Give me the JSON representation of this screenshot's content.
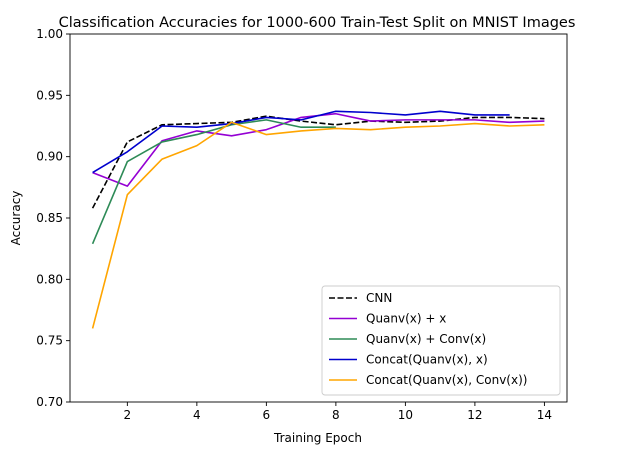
{
  "chart_data": {
    "type": "line",
    "title": "Classification Accuracies for 1000-600 Train-Test Split on MNIST Images",
    "xlabel": "Training Epoch",
    "ylabel": "Accuracy",
    "xlim": [
      0.35,
      14.65
    ],
    "ylim": [
      0.7,
      1.0
    ],
    "xticks": [
      2,
      4,
      6,
      8,
      10,
      12,
      14
    ],
    "xtick_labels": [
      "2",
      "4",
      "6",
      "8",
      "10",
      "12",
      "14"
    ],
    "yticks": [
      0.7,
      0.75,
      0.8,
      0.85,
      0.9,
      0.95,
      1.0
    ],
    "ytick_labels": [
      "0.70",
      "0.75",
      "0.80",
      "0.85",
      "0.90",
      "0.95",
      "1.00"
    ],
    "grid": false,
    "legend_position": "lower-right",
    "series": [
      {
        "name": "CNN",
        "color": "#000000",
        "dashed": true,
        "x": [
          1,
          2,
          3,
          4,
          5,
          6,
          7,
          8,
          9,
          10,
          11,
          12,
          13,
          14
        ],
        "y": [
          0.858,
          0.912,
          0.926,
          0.927,
          0.928,
          0.933,
          0.929,
          0.926,
          0.929,
          0.928,
          0.929,
          0.932,
          0.932,
          0.931
        ]
      },
      {
        "name": "Quanv(x) + x",
        "color": "#9400d3",
        "dashed": false,
        "x": [
          1,
          2,
          3,
          4,
          5,
          6,
          7,
          8,
          9,
          10,
          11,
          12,
          13,
          14
        ],
        "y": [
          0.887,
          0.876,
          0.913,
          0.921,
          0.917,
          0.922,
          0.932,
          0.935,
          0.929,
          0.93,
          0.93,
          0.93,
          0.928,
          0.929
        ]
      },
      {
        "name": "Quanv(x) + Conv(x)",
        "color": "#2e8b57",
        "dashed": false,
        "x": [
          1,
          2,
          3,
          4,
          5,
          6,
          7,
          8
        ],
        "y": [
          0.829,
          0.896,
          0.912,
          0.918,
          0.926,
          0.93,
          0.924,
          0.924
        ]
      },
      {
        "name": "Concat(Quanv(x), x)",
        "color": "#0000cd",
        "dashed": false,
        "x": [
          1,
          2,
          3,
          4,
          5,
          6,
          7,
          8,
          9,
          10,
          11,
          12,
          13
        ],
        "y": [
          0.887,
          0.904,
          0.925,
          0.924,
          0.927,
          0.932,
          0.93,
          0.937,
          0.936,
          0.934,
          0.937,
          0.934,
          0.934
        ]
      },
      {
        "name": "Concat(Quanv(x), Conv(x))",
        "color": "#ffa500",
        "dashed": false,
        "x": [
          1,
          2,
          3,
          4,
          5,
          6,
          7,
          8,
          9,
          10,
          11,
          12,
          13,
          14
        ],
        "y": [
          0.76,
          0.869,
          0.898,
          0.909,
          0.928,
          0.918,
          0.921,
          0.923,
          0.922,
          0.924,
          0.925,
          0.927,
          0.925,
          0.926
        ]
      }
    ]
  }
}
